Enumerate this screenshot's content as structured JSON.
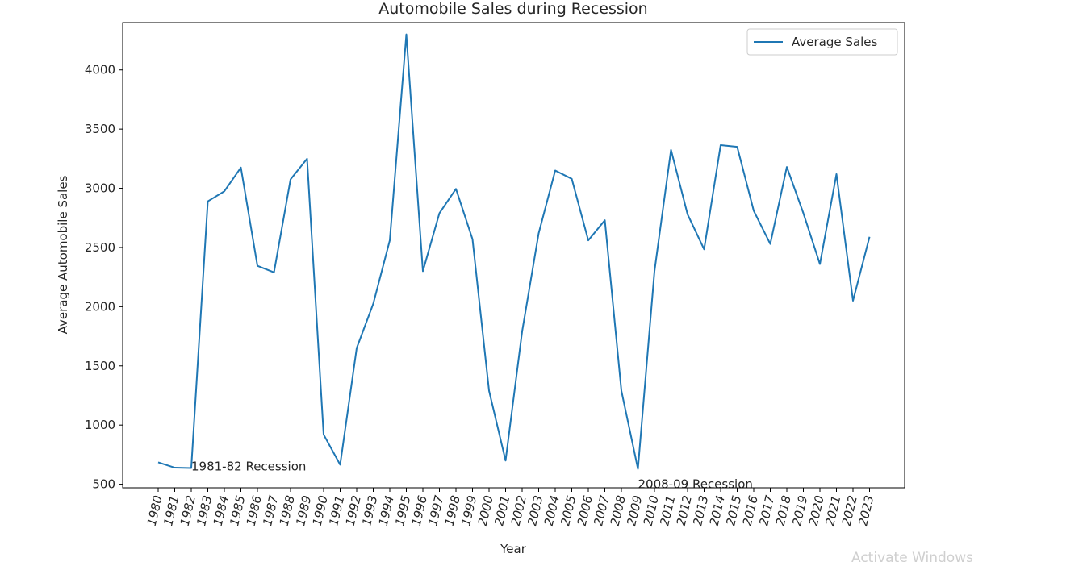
{
  "chart_data": {
    "type": "line",
    "title": "Automobile Sales during Recession",
    "xlabel": "Year",
    "ylabel": "Average Automobile Sales",
    "ylim": [
      470,
      4400
    ],
    "yticks": [
      500,
      1000,
      1500,
      2000,
      2500,
      3000,
      3500,
      4000
    ],
    "categories": [
      "1980",
      "1981",
      "1982",
      "1983",
      "1984",
      "1985",
      "1986",
      "1987",
      "1988",
      "1989",
      "1990",
      "1991",
      "1992",
      "1993",
      "1994",
      "1995",
      "1996",
      "1997",
      "1998",
      "1999",
      "2000",
      "2001",
      "2002",
      "2003",
      "2004",
      "2005",
      "2006",
      "2007",
      "2008",
      "2009",
      "2010",
      "2011",
      "2012",
      "2013",
      "2014",
      "2015",
      "2016",
      "2017",
      "2018",
      "2019",
      "2020",
      "2021",
      "2022",
      "2023"
    ],
    "series": [
      {
        "name": "Average Sales",
        "color": "#1f77b4",
        "values": [
          685,
          640,
          637,
          2890,
          2975,
          3175,
          2345,
          2290,
          3075,
          3250,
          920,
          665,
          1650,
          2025,
          2560,
          4300,
          2300,
          2790,
          2995,
          2570,
          1290,
          700,
          1790,
          2620,
          3150,
          3080,
          2560,
          2730,
          1290,
          630,
          2300,
          3325,
          2780,
          2485,
          3365,
          3350,
          2810,
          2530,
          3180,
          2790,
          2360,
          3120,
          2050,
          2590
        ]
      }
    ],
    "annotations": [
      {
        "text": "1981-82 Recession",
        "x": "1982",
        "y": 650
      },
      {
        "text": "2008-09 Recession",
        "x": "2009",
        "y": 500
      }
    ],
    "legend": {
      "position": "top-right",
      "label": "Average Sales"
    },
    "grid": false
  },
  "watermark": "Activate Windows"
}
